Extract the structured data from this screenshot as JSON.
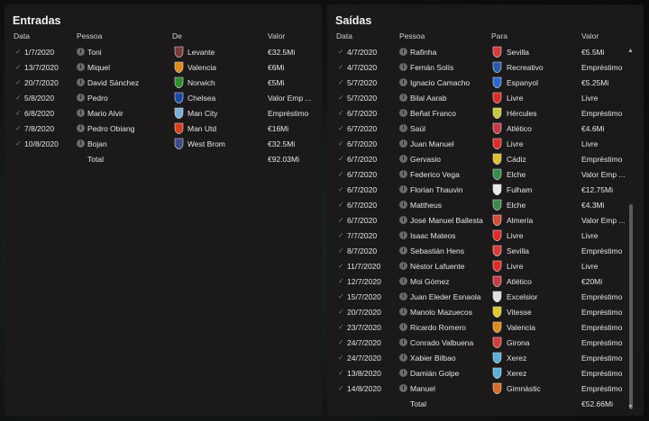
{
  "incoming": {
    "title": "Entradas",
    "headers": {
      "date": "Data",
      "person": "Pessoa",
      "club": "De",
      "value": "Valor"
    },
    "rows": [
      {
        "date": "1/7/2020",
        "person": "Toni",
        "club": "Levante",
        "value": "€32.5Mi",
        "crest": "#7a3a3a"
      },
      {
        "date": "13/7/2020",
        "person": "Miquel",
        "club": "Valencia",
        "value": "€6Mi",
        "crest": "#e08a1a"
      },
      {
        "date": "20/7/2020",
        "person": "David Sánchez",
        "club": "Norwich",
        "value": "€5Mi",
        "crest": "#2e8b2e"
      },
      {
        "date": "5/8/2020",
        "person": "Pedro",
        "club": "Chelsea",
        "value": "Valor Emp ...",
        "crest": "#1a4aa8"
      },
      {
        "date": "6/8/2020",
        "person": "Mario Alvir",
        "club": "Man City",
        "value": "Empréstimo",
        "crest": "#7ab0d8"
      },
      {
        "date": "7/8/2020",
        "person": "Pedro Obiang",
        "club": "Man Utd",
        "value": "€16Mi",
        "crest": "#d8401a"
      },
      {
        "date": "10/8/2020",
        "person": "Bojan",
        "club": "West Brom",
        "value": "€32.5Mi",
        "crest": "#3a4a8a"
      }
    ],
    "total_label": "Total",
    "total_value": "€92.03Mi"
  },
  "outgoing": {
    "title": "Saídas",
    "headers": {
      "date": "Data",
      "person": "Pessoa",
      "club": "Para",
      "value": "Valor"
    },
    "rows": [
      {
        "date": "4/7/2020",
        "person": "Rafinha",
        "club": "Sevilla",
        "value": "€5.5Mi",
        "crest": "#d83a3a"
      },
      {
        "date": "4/7/2020",
        "person": "Fernán Solís",
        "club": "Recreativo",
        "value": "Empréstimo",
        "crest": "#2a5ab0"
      },
      {
        "date": "5/7/2020",
        "person": "Ignacio Camacho",
        "club": "Espanyol",
        "value": "€5.25Mi",
        "crest": "#2a6ad0"
      },
      {
        "date": "5/7/2020",
        "person": "Bilal Aarab",
        "club": "Livre",
        "value": "Livre",
        "crest": "#e02a2a"
      },
      {
        "date": "6/7/2020",
        "person": "Beñat Franco",
        "club": "Hércules",
        "value": "Empréstimo",
        "crest": "#c8c83a"
      },
      {
        "date": "6/7/2020",
        "person": "Saúl",
        "club": "Atlético",
        "value": "€4.6Mi",
        "crest": "#c83a4a"
      },
      {
        "date": "6/7/2020",
        "person": "Juan Manuel",
        "club": "Livre",
        "value": "Livre",
        "crest": "#e02a2a"
      },
      {
        "date": "6/7/2020",
        "person": "Gervasio",
        "club": "Cádiz",
        "value": "Empréstimo",
        "crest": "#e0c02a"
      },
      {
        "date": "6/7/2020",
        "person": "Federico Vega",
        "club": "Elche",
        "value": "Valor Emp ...",
        "crest": "#3a8a4a"
      },
      {
        "date": "6/7/2020",
        "person": "Florian Thauvin",
        "club": "Fulham",
        "value": "€12.75Mi",
        "crest": "#e8e8e8"
      },
      {
        "date": "6/7/2020",
        "person": "Mattheus",
        "club": "Elche",
        "value": "€4.3Mi",
        "crest": "#3a8a4a"
      },
      {
        "date": "6/7/2020",
        "person": "José Manuel Ballesta",
        "club": "Almería",
        "value": "Valor Emp ...",
        "crest": "#d84a3a"
      },
      {
        "date": "7/7/2020",
        "person": "Isaac Mateos",
        "club": "Livre",
        "value": "Livre",
        "crest": "#e02a2a"
      },
      {
        "date": "8/7/2020",
        "person": "Sebastián Hens",
        "club": "Sevilla",
        "value": "Empréstimo",
        "crest": "#d83a3a"
      },
      {
        "date": "11/7/2020",
        "person": "Néstor Lafuente",
        "club": "Livre",
        "value": "Livre",
        "crest": "#e02a2a"
      },
      {
        "date": "12/7/2020",
        "person": "Moi Gómez",
        "club": "Atlético",
        "value": "€20Mi",
        "crest": "#c83a4a"
      },
      {
        "date": "15/7/2020",
        "person": "Juan Eleder Esnaola",
        "club": "Excelsior",
        "value": "Empréstimo",
        "crest": "#e0e0e0"
      },
      {
        "date": "20/7/2020",
        "person": "Manolo Mazuecos",
        "club": "Vitesse",
        "value": "Empréstimo",
        "crest": "#e0c82a"
      },
      {
        "date": "23/7/2020",
        "person": "Ricardo Romero",
        "club": "Valencia",
        "value": "Empréstimo",
        "crest": "#e08a1a"
      },
      {
        "date": "24/7/2020",
        "person": "Conrado Valbuena",
        "club": "Girona",
        "value": "Empréstimo",
        "crest": "#d83a3a"
      },
      {
        "date": "24/7/2020",
        "person": "Xabier Bilbao",
        "club": "Xerez",
        "value": "Empréstimo",
        "crest": "#5ab0d8"
      },
      {
        "date": "13/8/2020",
        "person": "Damián Golpe",
        "club": "Xerez",
        "value": "Empréstimo",
        "crest": "#5ab0d8"
      },
      {
        "date": "14/8/2020",
        "person": "Manuel",
        "club": "Gimnàstic",
        "value": "Empréstimo",
        "crest": "#d86a2a"
      }
    ],
    "total_label": "Total",
    "total_value": "€52.66Mi"
  }
}
